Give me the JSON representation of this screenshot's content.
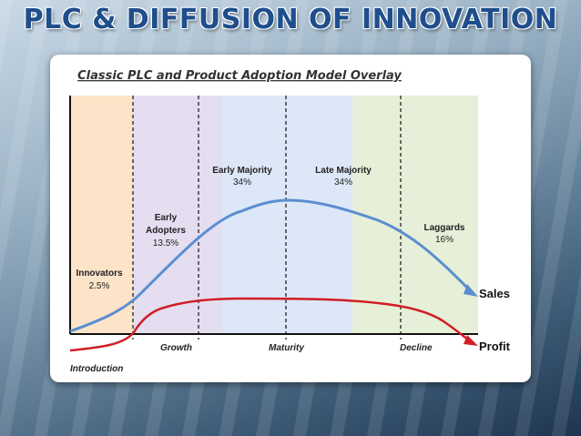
{
  "slide": {
    "title": "PLC & DIFFUSION OF INNOVATION"
  },
  "diagram": {
    "title": "Classic PLC and Product Adoption Model Overlay",
    "segments": [
      {
        "name": "Innovators",
        "pct": "2.5%",
        "color": "#fde3c8"
      },
      {
        "name": "Early Adopters",
        "pct": "13.5%",
        "color": "#e4def0"
      },
      {
        "name": "Early Majority",
        "pct": "34%",
        "color": "#dce8f7"
      },
      {
        "name": "Late Majority",
        "pct": "34%",
        "color": "#dce8f7"
      },
      {
        "name": "Laggards",
        "pct": "16%",
        "color": "#e6efd7"
      }
    ],
    "stages": [
      "Introduction",
      "Growth",
      "Maturity",
      "Decline"
    ],
    "curves": [
      {
        "name": "Sales",
        "color": "#5b8ed0"
      },
      {
        "name": "Profit",
        "color": "#d21e26"
      }
    ]
  }
}
